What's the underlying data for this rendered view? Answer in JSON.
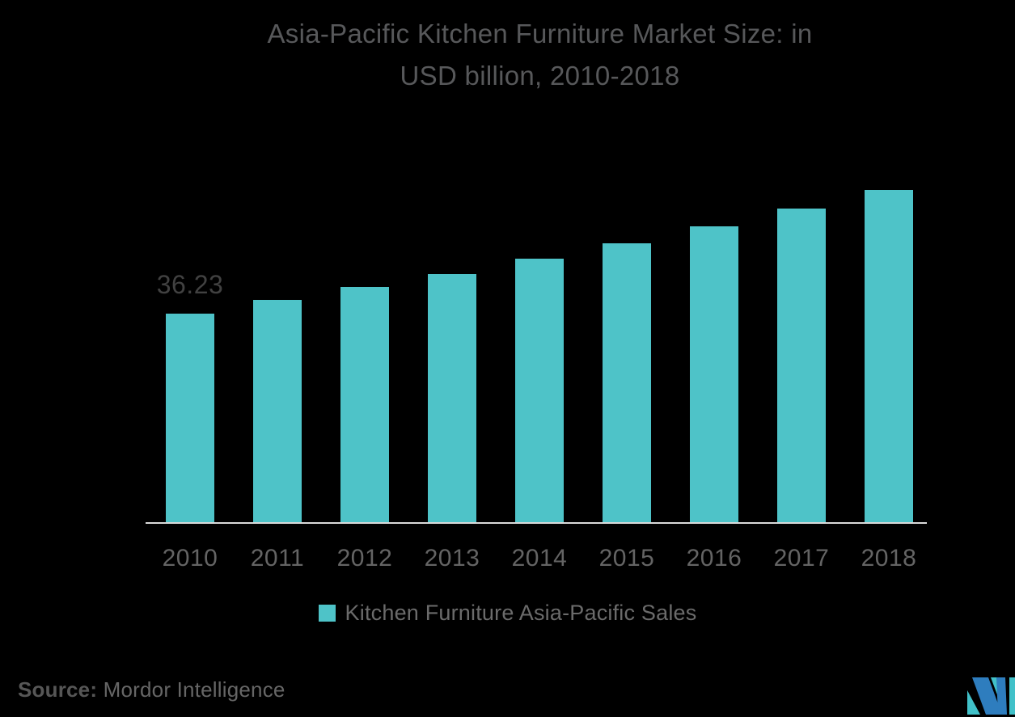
{
  "title": {
    "line1": "Asia-Pacific Kitchen Furniture Market Size: in",
    "line2": "USD billion, 2010-2018"
  },
  "chart_data": {
    "type": "bar",
    "title": "Asia-Pacific Kitchen Furniture Market Size: in USD billion, 2010-2018",
    "categories": [
      "2010",
      "2011",
      "2012",
      "2013",
      "2014",
      "2015",
      "2016",
      "2017",
      "2018"
    ],
    "values": [
      36.23,
      38.6,
      40.9,
      43.1,
      45.8,
      48.4,
      51.4,
      54.5,
      57.7
    ],
    "value_labels_shown": {
      "2010": "36.23"
    },
    "xlabel": "",
    "ylabel": "",
    "ylim": [
      0,
      60
    ],
    "y_axis_shown": false,
    "grid": false,
    "bar_color": "#4EC3C8",
    "background_color": "#000000",
    "legend": [
      "Kitchen Furniture Asia-Pacific Sales"
    ],
    "legend_position": "bottom"
  },
  "annotations": {
    "first_bar_label": "36.23"
  },
  "legend": {
    "label": "Kitchen Furniture Asia-Pacific Sales",
    "swatch_color": "#4EC3C8"
  },
  "source": {
    "label": "Source:",
    "text": "Mordor Intelligence"
  },
  "logo": {
    "name": "mordor-intelligence-logo",
    "blue": "#2E7DBE",
    "teal": "#41C1C9"
  },
  "colors": {
    "title_text": "#57585A",
    "value_label_text": "#414141",
    "axis_label_text": "#646464",
    "axis_line": "#DADADA",
    "legend_text": "#6B6B6B",
    "source_text": "#666666"
  }
}
